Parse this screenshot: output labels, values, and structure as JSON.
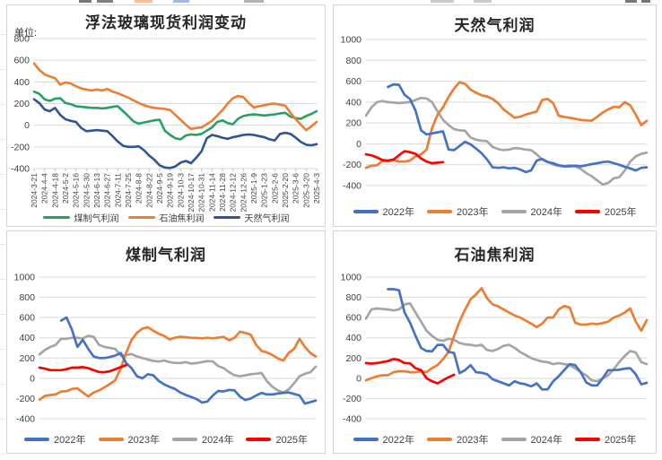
{
  "colors": {
    "grid": "#d9d9d9",
    "axis_text": "#404040",
    "title_text": "#262626",
    "legend_text": "#404040",
    "panel_border": "#d3d3d3",
    "x_tick": "#bfbfbf"
  },
  "chart_data": [
    {
      "id": "float-glass-spot-profit",
      "type": "line",
      "title": "浮法玻璃现货利润变动",
      "unit_label": "单位:",
      "ylim": [
        -400,
        800
      ],
      "yticks": [
        800,
        600,
        400,
        200,
        0,
        -200,
        -400
      ],
      "grid": true,
      "legend_position": "bottom",
      "x_points": 55,
      "categories": [
        "2024-3-21",
        "2024-4-4",
        "2024-4-18",
        "2024-5-2",
        "2024-5-16",
        "2024-5-30",
        "2024-6-13",
        "2024-6-27",
        "2024-7-11",
        "2024-7-25",
        "2024-8-8",
        "2024-8-22",
        "2024-9-5",
        "2024-9-19",
        "2024-10-3",
        "2024-10-17",
        "2024-10-31",
        "2024-11-14",
        "2024-11-28",
        "2024-12-12",
        "2024-12-26",
        "2025-1-9",
        "2025-1-23",
        "2025-2-6",
        "2025-2-20",
        "2025-3-6",
        "2025-3-20",
        "2025-4-3"
      ],
      "series": [
        {
          "name": "煤制气利润",
          "color": "#27A163",
          "values": [
            310,
            290,
            240,
            225,
            245,
            250,
            205,
            195,
            175,
            170,
            165,
            160,
            160,
            155,
            160,
            170,
            175,
            130,
            85,
            35,
            15,
            25,
            35,
            45,
            50,
            -50,
            -90,
            -120,
            -130,
            -95,
            -85,
            -90,
            -80,
            -50,
            -20,
            30,
            45,
            20,
            10,
            60,
            85,
            95,
            100,
            95,
            90,
            95,
            100,
            110,
            115,
            80,
            65,
            60,
            85,
            105,
            130
          ]
        },
        {
          "name": "石油焦利润",
          "color": "#ED7D31",
          "values": [
            570,
            510,
            470,
            450,
            435,
            375,
            395,
            385,
            360,
            340,
            330,
            320,
            330,
            320,
            335,
            310,
            295,
            275,
            255,
            230,
            205,
            185,
            170,
            160,
            155,
            150,
            140,
            95,
            50,
            5,
            -35,
            -25,
            -20,
            10,
            40,
            90,
            140,
            200,
            250,
            270,
            260,
            205,
            165,
            175,
            185,
            195,
            200,
            190,
            180,
            115,
            55,
            5,
            -45,
            -10,
            30
          ]
        },
        {
          "name": "天然气利润",
          "color": "#2F5597",
          "values": [
            240,
            205,
            145,
            130,
            160,
            95,
            55,
            40,
            30,
            -25,
            -55,
            -50,
            -45,
            -50,
            -55,
            -100,
            -150,
            -190,
            -200,
            -200,
            -195,
            -230,
            -280,
            -320,
            -370,
            -390,
            -395,
            -380,
            -345,
            -330,
            -350,
            -300,
            -240,
            -120,
            -90,
            -100,
            -115,
            -125,
            -110,
            -100,
            -90,
            -85,
            -90,
            -100,
            -110,
            -130,
            -140,
            -80,
            -70,
            -80,
            -115,
            -155,
            -180,
            -185,
            -175
          ]
        }
      ]
    },
    {
      "id": "natural-gas-profit",
      "type": "line",
      "title": "天然气利润",
      "ylim": [
        -400,
        1000
      ],
      "yticks": [
        1000,
        800,
        600,
        400,
        200,
        0,
        -200,
        -400
      ],
      "grid": true,
      "legend_position": "bottom",
      "x_points": 52,
      "series": [
        {
          "name": "2022年",
          "color": "#4472C4",
          "start_index": 4,
          "values": [
            545,
            570,
            565,
            470,
            430,
            320,
            130,
            90,
            100,
            110,
            120,
            -55,
            -60,
            -20,
            20,
            -5,
            -45,
            -90,
            -150,
            -225,
            -230,
            -225,
            -235,
            -230,
            -245,
            -270,
            -255,
            -160,
            -145,
            -175,
            -185,
            -205,
            -215,
            -215,
            -210,
            -215,
            -205,
            -195,
            -185,
            -175,
            -170,
            -185,
            -200,
            -220,
            -235,
            -255,
            -230,
            -225
          ]
        },
        {
          "name": "2023年",
          "color": "#ED7D31",
          "values": [
            -230,
            -210,
            -205,
            -162,
            -165,
            -158,
            -168,
            -170,
            -160,
            -120,
            -100,
            -55,
            150,
            280,
            350,
            450,
            530,
            590,
            575,
            520,
            490,
            465,
            455,
            430,
            390,
            330,
            290,
            250,
            260,
            280,
            295,
            310,
            420,
            430,
            390,
            270,
            258,
            250,
            240,
            230,
            225,
            222,
            260,
            300,
            330,
            355,
            350,
            400,
            370,
            280,
            180,
            220
          ]
        },
        {
          "name": "2024年",
          "color": "#A5A5A5",
          "values": [
            270,
            350,
            400,
            410,
            400,
            395,
            390,
            395,
            400,
            420,
            440,
            435,
            400,
            310,
            230,
            180,
            140,
            130,
            125,
            60,
            40,
            30,
            25,
            -30,
            -50,
            -60,
            -55,
            -40,
            -45,
            -55,
            -60,
            -100,
            -150,
            -170,
            -200,
            -210,
            -215,
            -205,
            -215,
            -240,
            -280,
            -310,
            -350,
            -390,
            -375,
            -330,
            -320,
            -255,
            -170,
            -120,
            -95,
            -85
          ]
        },
        {
          "name": "2025年",
          "color": "#FF0000",
          "values": [
            -100,
            -110,
            -130,
            -155,
            -160,
            -150,
            -110,
            -70,
            -80,
            -95,
            -140,
            -170,
            -185,
            -180,
            -175
          ]
        }
      ]
    },
    {
      "id": "coal-gas-profit",
      "type": "line",
      "title": "煤制气利润",
      "ylim": [
        -400,
        1000
      ],
      "yticks": [
        1000,
        800,
        600,
        400,
        200,
        0,
        -200,
        -400
      ],
      "grid": true,
      "legend_position": "bottom",
      "x_points": 52,
      "series": [
        {
          "name": "2022年",
          "color": "#4472C4",
          "start_index": 4,
          "values": [
            570,
            600,
            480,
            310,
            380,
            290,
            215,
            200,
            200,
            210,
            225,
            250,
            150,
            100,
            20,
            0,
            40,
            30,
            -25,
            -60,
            -85,
            -105,
            -140,
            -165,
            -185,
            -205,
            -240,
            -230,
            -170,
            -125,
            -130,
            -115,
            -120,
            -180,
            -215,
            -200,
            -170,
            -145,
            -160,
            -160,
            -150,
            -145,
            -140,
            -155,
            -170,
            -250,
            -235,
            -220
          ]
        },
        {
          "name": "2023年",
          "color": "#ED7D31",
          "values": [
            -210,
            -175,
            -165,
            -160,
            -130,
            -128,
            -105,
            -100,
            -140,
            -180,
            -140,
            -120,
            -90,
            -55,
            -20,
            100,
            250,
            380,
            450,
            490,
            505,
            470,
            440,
            420,
            385,
            400,
            410,
            405,
            400,
            398,
            395,
            400,
            395,
            402,
            410,
            375,
            400,
            460,
            448,
            430,
            330,
            270,
            255,
            230,
            195,
            175,
            250,
            290,
            390,
            310,
            250,
            215
          ]
        },
        {
          "name": "2024年",
          "color": "#A5A5A5",
          "values": [
            235,
            280,
            310,
            330,
            390,
            390,
            400,
            400,
            395,
            420,
            410,
            330,
            310,
            300,
            290,
            225,
            230,
            240,
            215,
            200,
            185,
            172,
            165,
            175,
            160,
            152,
            150,
            160,
            145,
            150,
            160,
            170,
            165,
            120,
            100,
            60,
            30,
            20,
            30,
            40,
            45,
            52,
            -30,
            -85,
            -120,
            -140,
            -110,
            -50,
            20,
            45,
            60,
            115
          ]
        },
        {
          "name": "2025年",
          "color": "#FF0000",
          "values": [
            105,
            95,
            80,
            80,
            80,
            90,
            105,
            105,
            110,
            100,
            80,
            62,
            60,
            70,
            90,
            110,
            130
          ]
        }
      ]
    },
    {
      "id": "petroleum-coke-profit",
      "type": "line",
      "title": "石油焦利润",
      "ylim": [
        -400,
        1000
      ],
      "yticks": [
        1000,
        800,
        600,
        400,
        200,
        0,
        -200,
        -400
      ],
      "grid": true,
      "legend_position": "bottom",
      "x_points": 52,
      "series": [
        {
          "name": "2022年",
          "color": "#4472C4",
          "start_index": 4,
          "values": [
            880,
            880,
            870,
            650,
            550,
            420,
            300,
            270,
            265,
            330,
            330,
            260,
            250,
            50,
            80,
            130,
            60,
            55,
            40,
            -10,
            -30,
            -50,
            -70,
            -30,
            -50,
            -60,
            -80,
            -50,
            -110,
            -110,
            -30,
            20,
            80,
            140,
            130,
            60,
            -40,
            -70,
            -70,
            0,
            80,
            80,
            85,
            95,
            100,
            40,
            -60,
            -45
          ]
        },
        {
          "name": "2023年",
          "color": "#ED7D31",
          "values": [
            -20,
            0,
            20,
            30,
            30,
            60,
            70,
            70,
            60,
            60,
            70,
            60,
            100,
            130,
            190,
            260,
            420,
            560,
            680,
            780,
            830,
            890,
            790,
            730,
            710,
            680,
            650,
            620,
            600,
            570,
            540,
            505,
            540,
            600,
            600,
            680,
            715,
            700,
            550,
            530,
            530,
            540,
            535,
            545,
            560,
            600,
            620,
            650,
            690,
            560,
            470,
            575
          ]
        },
        {
          "name": "2024年",
          "color": "#A5A5A5",
          "values": [
            590,
            680,
            690,
            685,
            680,
            670,
            680,
            730,
            740,
            650,
            560,
            470,
            420,
            380,
            370,
            390,
            380,
            350,
            335,
            330,
            320,
            330,
            280,
            270,
            290,
            320,
            330,
            300,
            260,
            230,
            200,
            180,
            165,
            160,
            140,
            150,
            140,
            130,
            100,
            60,
            30,
            -20,
            -30,
            0,
            30,
            90,
            160,
            220,
            270,
            255,
            160,
            140
          ]
        },
        {
          "name": "2025年",
          "color": "#FF0000",
          "values": [
            150,
            145,
            150,
            160,
            170,
            190,
            180,
            150,
            148,
            100,
            80,
            0,
            -30,
            -50,
            -20,
            10,
            35
          ]
        }
      ]
    }
  ]
}
